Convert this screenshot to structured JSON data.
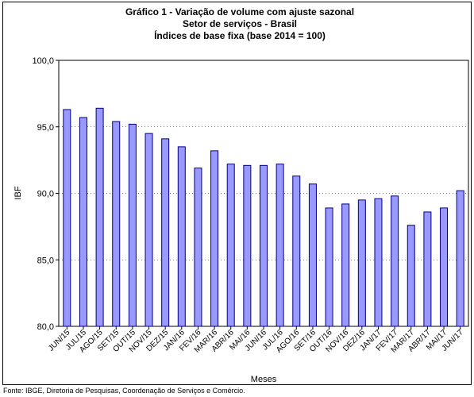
{
  "chart_data": {
    "type": "bar",
    "title_lines": [
      "Gráfico 1 - Variação de volume com ajuste sazonal",
      "Setor de serviços - Brasil",
      "Índices de base fixa  (base 2014 = 100)"
    ],
    "xlabel": "Meses",
    "ylabel": "IBF",
    "ylim": [
      80,
      100
    ],
    "yticks": [
      "80,0",
      "85,0",
      "90,0",
      "95,0",
      "100,0"
    ],
    "ytick_values": [
      80,
      85,
      90,
      95,
      100
    ],
    "grid": true,
    "categories": [
      "JUN/15",
      "JUL/15",
      "AGO/15",
      "SET/15",
      "OUT/15",
      "NOV/15",
      "DEZ/15",
      "JAN/16",
      "FEV/16",
      "MAR/16",
      "ABR/16",
      "MAI/16",
      "JUN/16",
      "JUL/16",
      "AGO/16",
      "SET/16",
      "OUT/16",
      "NOV/16",
      "DEZ/16",
      "JAN/17",
      "FEV/17",
      "MAR/17",
      "ABR/17",
      "MAI/17",
      "JUN/17"
    ],
    "values": [
      96.3,
      95.7,
      96.4,
      95.4,
      95.2,
      94.5,
      94.1,
      93.5,
      91.9,
      93.2,
      92.2,
      92.1,
      92.1,
      92.2,
      91.3,
      90.7,
      88.9,
      89.2,
      89.5,
      89.6,
      89.8,
      87.6,
      88.6,
      88.9,
      90.2
    ],
    "bar_color": "#9999ff",
    "bar_edge_color": "#000080"
  },
  "footnote": "Fonte: IBGE, Diretoria de Pesquisas, Coordenação de Serviços e Comércio."
}
